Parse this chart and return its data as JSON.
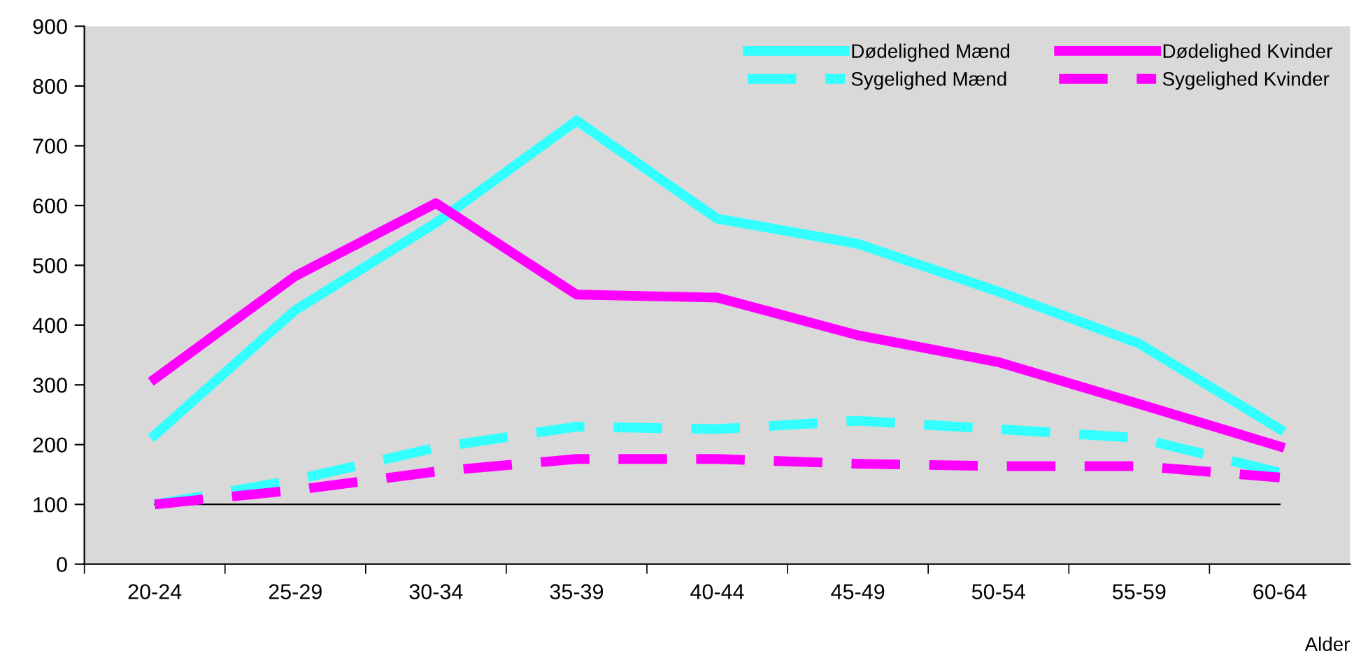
{
  "chart_data": {
    "type": "line",
    "xlabel": "Alder",
    "categories": [
      "20-24",
      "25-29",
      "30-34",
      "35-39",
      "40-44",
      "45-49",
      "50-54",
      "55-59",
      "60-64"
    ],
    "series": [
      {
        "name": "Dødelighed Mænd",
        "color": "#33ffff",
        "line_style": "solid",
        "values": [
          216,
          425,
          571,
          742,
          578,
          536,
          456,
          369,
          226
        ]
      },
      {
        "name": "Dødelighed Kvinder",
        "color": "#ff00ff",
        "line_style": "solid",
        "values": [
          310,
          482,
          604,
          451,
          446,
          383,
          338,
          268,
          197
        ]
      },
      {
        "name": "Sygelighed Mænd",
        "color": "#33ffff",
        "line_style": "dashed",
        "values": [
          100,
          141,
          195,
          230,
          226,
          240,
          226,
          211,
          153
        ]
      },
      {
        "name": "Sygelighed Kvinder",
        "color": "#ff00ff",
        "line_style": "dashed",
        "values": [
          100,
          124,
          155,
          176,
          176,
          168,
          164,
          164,
          145
        ]
      }
    ],
    "ylim": [
      0,
      900
    ],
    "yticks": [
      0,
      100,
      200,
      300,
      400,
      500,
      600,
      700,
      800,
      900
    ],
    "ref_lines": [
      {
        "axis": "y",
        "value": 100,
        "color": "#000000"
      }
    ],
    "grid": false,
    "legend": "top right",
    "marker": "none"
  }
}
